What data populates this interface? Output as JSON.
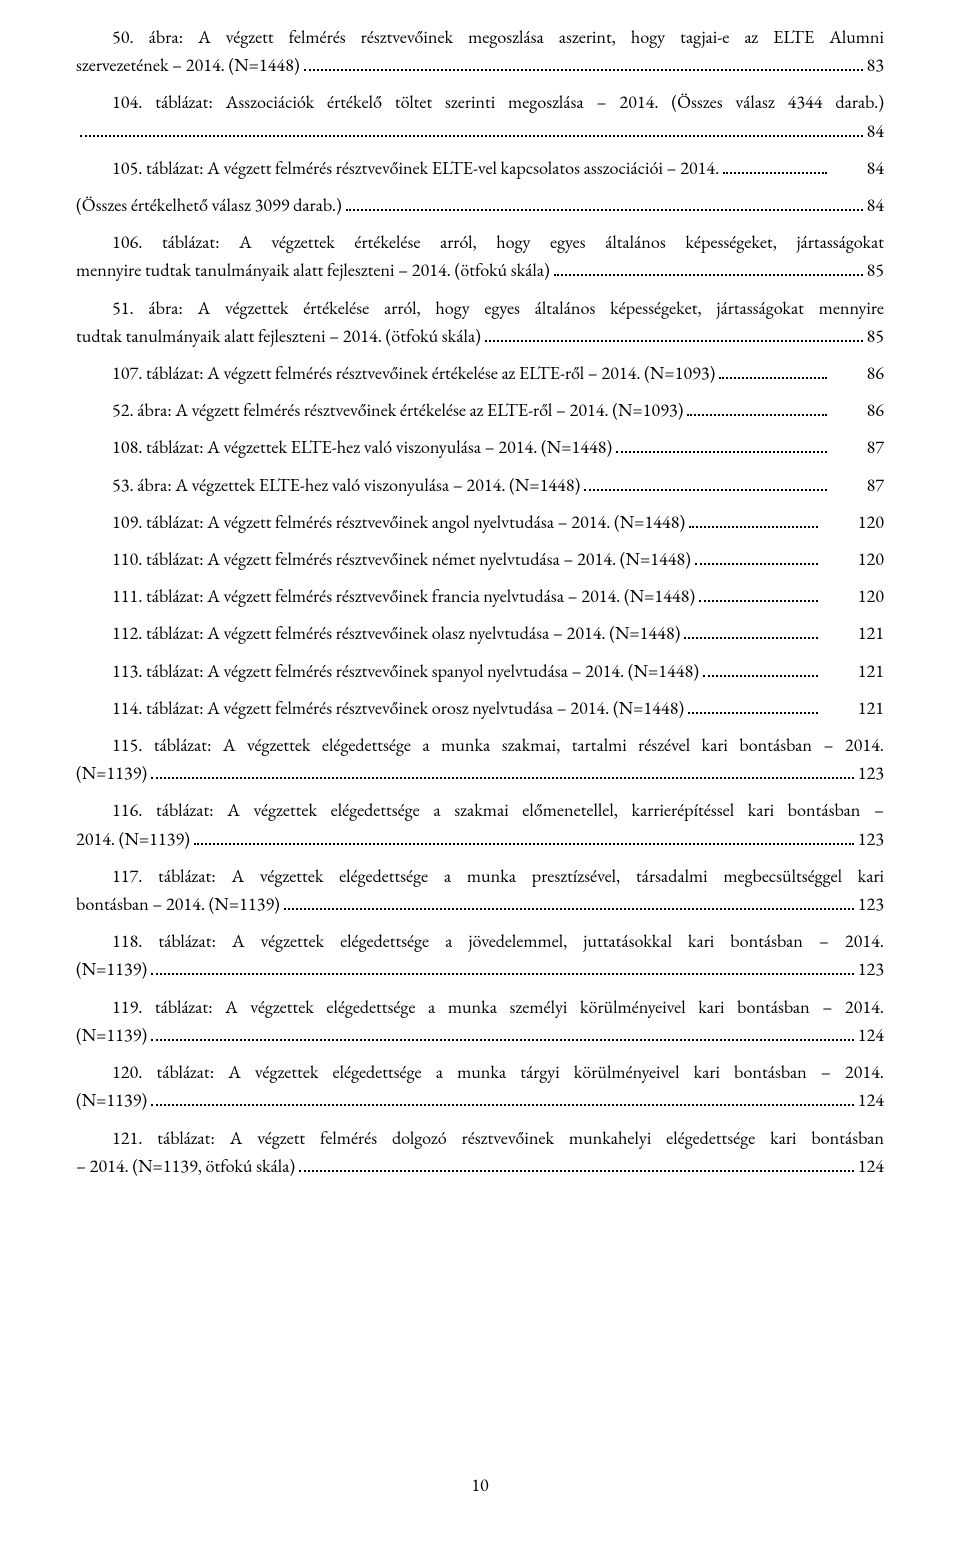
{
  "page_number": "10",
  "entries": [
    {
      "lines": [
        "50. ábra: A végzett felmérés résztvevőinek megoszlása aszerint, hogy tagjai-e az ELTE Alumni",
        "szervezetének – 2014. (N=1448)"
      ],
      "page": "83",
      "first_indent": true
    },
    {
      "lines": [
        "104. táblázat: Asszociációk értékelő töltet szerinti megoszlása – 2014. (Összes válasz 4344 darab.)"
      ],
      "page": "84",
      "first_indent": true,
      "break_before_leader": true
    },
    {
      "lines": [
        "105. táblázat: A végzett felmérés résztvevőinek ELTE-vel kapcsolatos asszociációi – 2014."
      ],
      "page": "84",
      "first_indent": true
    },
    {
      "lines": [
        "(Összes értékelhető válasz 3099 darab.)"
      ],
      "page": "84",
      "first_indent": false
    },
    {
      "lines": [
        "106. táblázat: A végzettek értékelése arról, hogy egyes általános képességeket, jártasságokat",
        "mennyire tudtak tanulmányaik alatt fejleszteni – 2014. (ötfokú skála)"
      ],
      "page": "85",
      "first_indent": true
    },
    {
      "lines": [
        "51. ábra: A végzettek értékelése arról, hogy egyes általános képességeket, jártasságokat mennyire",
        "tudtak tanulmányaik alatt fejleszteni – 2014. (ötfokú skála)"
      ],
      "page": "85",
      "first_indent": true
    },
    {
      "lines": [
        "107. táblázat: A végzett felmérés résztvevőinek értékelése az ELTE-ről – 2014. (N=1093)"
      ],
      "page": "86",
      "first_indent": true
    },
    {
      "lines": [
        "52. ábra: A végzett felmérés résztvevőinek értékelése az ELTE-ről – 2014. (N=1093)"
      ],
      "page": "86",
      "first_indent": true
    },
    {
      "lines": [
        "108. táblázat: A végzettek ELTE-hez való viszonyulása – 2014. (N=1448)"
      ],
      "page": "87",
      "first_indent": true
    },
    {
      "lines": [
        "53. ábra: A végzettek ELTE-hez való viszonyulása – 2014. (N=1448)"
      ],
      "page": "87",
      "first_indent": true
    },
    {
      "lines": [
        "109. táblázat: A végzett felmérés résztvevőinek angol nyelvtudása – 2014. (N=1448)"
      ],
      "page": "120",
      "first_indent": true
    },
    {
      "lines": [
        "110. táblázat: A végzett felmérés résztvevőinek német nyelvtudása – 2014. (N=1448)"
      ],
      "page": "120",
      "first_indent": true
    },
    {
      "lines": [
        "111. táblázat: A végzett felmérés résztvevőinek francia nyelvtudása – 2014. (N=1448)"
      ],
      "page": "120",
      "first_indent": true
    },
    {
      "lines": [
        "112. táblázat: A végzett felmérés résztvevőinek olasz nyelvtudása – 2014. (N=1448)"
      ],
      "page": "121",
      "first_indent": true
    },
    {
      "lines": [
        "113. táblázat: A végzett felmérés résztvevőinek spanyol nyelvtudása – 2014. (N=1448)"
      ],
      "page": "121",
      "first_indent": true
    },
    {
      "lines": [
        "114. táblázat: A végzett felmérés résztvevőinek orosz nyelvtudása – 2014. (N=1448)"
      ],
      "page": "121",
      "first_indent": true
    },
    {
      "lines": [
        "115. táblázat: A végzettek elégedettsége a munka szakmai, tartalmi részével kari bontásban – 2014.",
        "(N=1139)"
      ],
      "page": "123",
      "first_indent": true
    },
    {
      "lines": [
        "116. táblázat: A végzettek elégedettsége a szakmai előmenetellel, karrierépítéssel kari bontásban –",
        "2014. (N=1139)"
      ],
      "page": "123",
      "first_indent": true
    },
    {
      "lines": [
        "117. táblázat: A végzettek elégedettsége a munka presztízsével, társadalmi megbecsültséggel kari",
        "bontásban – 2014. (N=1139)"
      ],
      "page": "123",
      "first_indent": true
    },
    {
      "lines": [
        "118. táblázat: A végzettek elégedettsége a jövedelemmel, juttatásokkal kari bontásban – 2014.",
        "(N=1139)"
      ],
      "page": "123",
      "first_indent": true
    },
    {
      "lines": [
        "119. táblázat: A végzettek elégedettsége a munka személyi körülményeivel kari bontásban – 2014.",
        "(N=1139)"
      ],
      "page": "124",
      "first_indent": true
    },
    {
      "lines": [
        "120. táblázat: A végzettek elégedettsége a munka tárgyi körülményeivel kari bontásban – 2014.",
        "(N=1139)"
      ],
      "page": "124",
      "first_indent": true
    },
    {
      "lines": [
        "121. táblázat: A végzett felmérés dolgozó résztvevőinek munkahelyi elégedettsége kari bontásban",
        "– 2014. (N=1139, ötfokú skála)"
      ],
      "page": "124",
      "first_indent": true
    }
  ]
}
